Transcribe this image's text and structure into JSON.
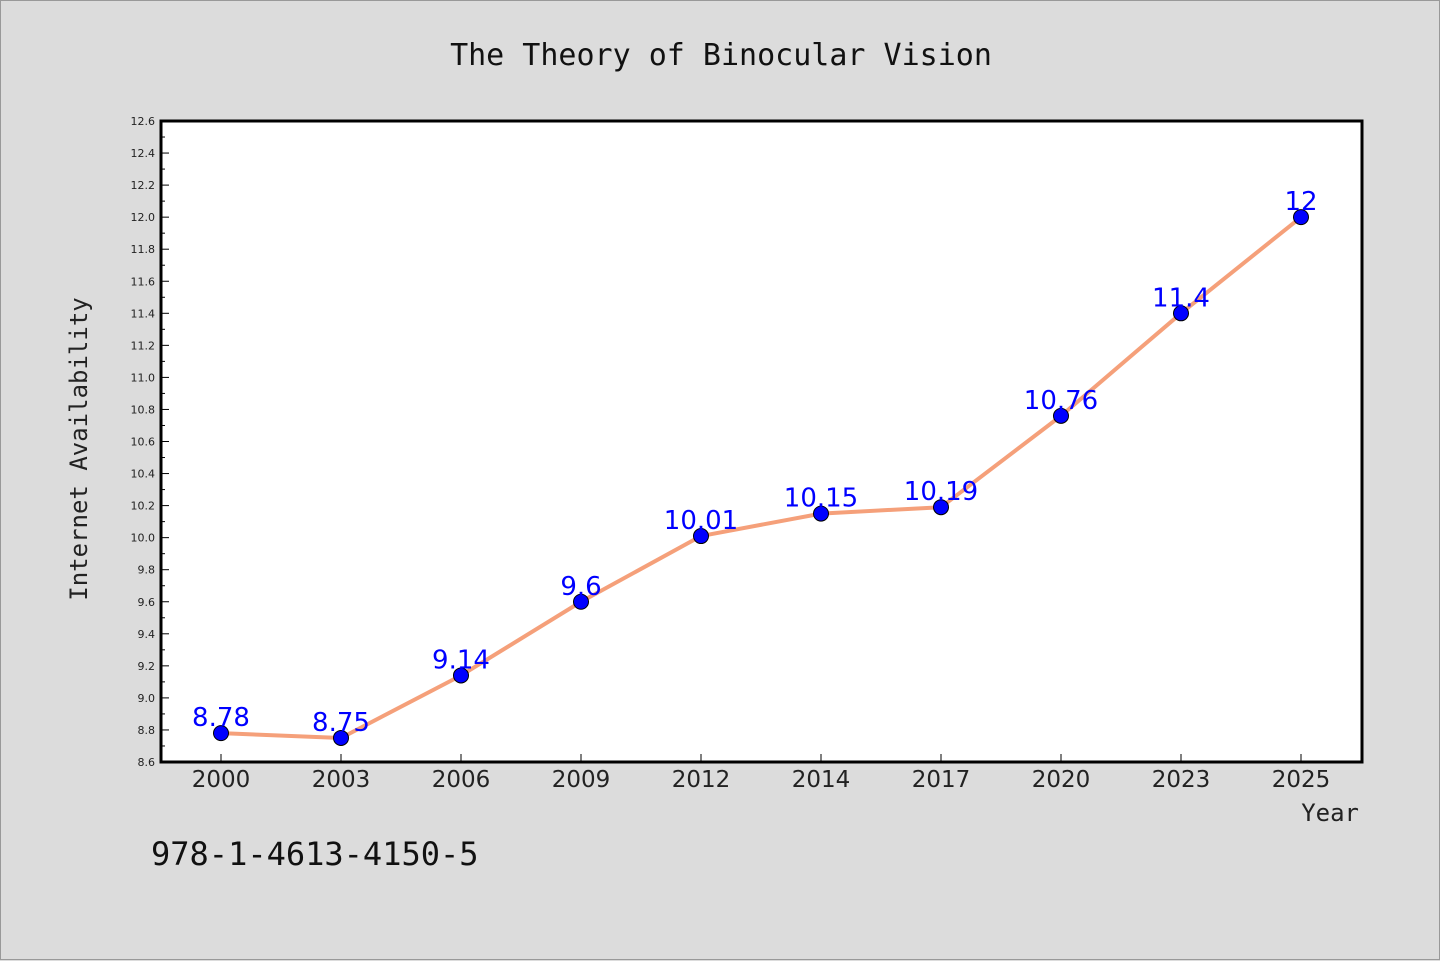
{
  "chart_data": {
    "type": "line",
    "title": "The Theory of Binocular Vision",
    "xlabel": "Year",
    "ylabel": "Internet Availability",
    "categories": [
      "2000",
      "2003",
      "2006",
      "2009",
      "2012",
      "2014",
      "2017",
      "2020",
      "2023",
      "2025"
    ],
    "series": [
      {
        "values": [
          8.78,
          8.75,
          9.14,
          9.6,
          10.01,
          10.15,
          10.19,
          10.76,
          11.4,
          12
        ]
      }
    ],
    "data_labels": [
      "8.78",
      "8.75",
      "9.14",
      "9.6",
      "10.01",
      "10.15",
      "10.19",
      "10.76",
      "11.4",
      "12"
    ],
    "ylim": [
      8.6,
      12.6
    ],
    "yticks": [
      "8.6",
      "8.8",
      "9.0",
      "9.2",
      "9.4",
      "9.6",
      "9.8",
      "10.0",
      "10.2",
      "10.4",
      "10.6",
      "10.8",
      "11.0",
      "11.2",
      "11.4",
      "11.6",
      "11.8",
      "12.0",
      "12.2",
      "12.4",
      "12.6"
    ],
    "grid": false,
    "legend": "none",
    "colors": {
      "line": "#f5a07a",
      "marker": "#0000ff",
      "label": "#0000ff",
      "background": "#dcdcdc",
      "plot_background": "#ffffff"
    }
  },
  "footer": {
    "isbn": "978-1-4613-4150-5"
  }
}
